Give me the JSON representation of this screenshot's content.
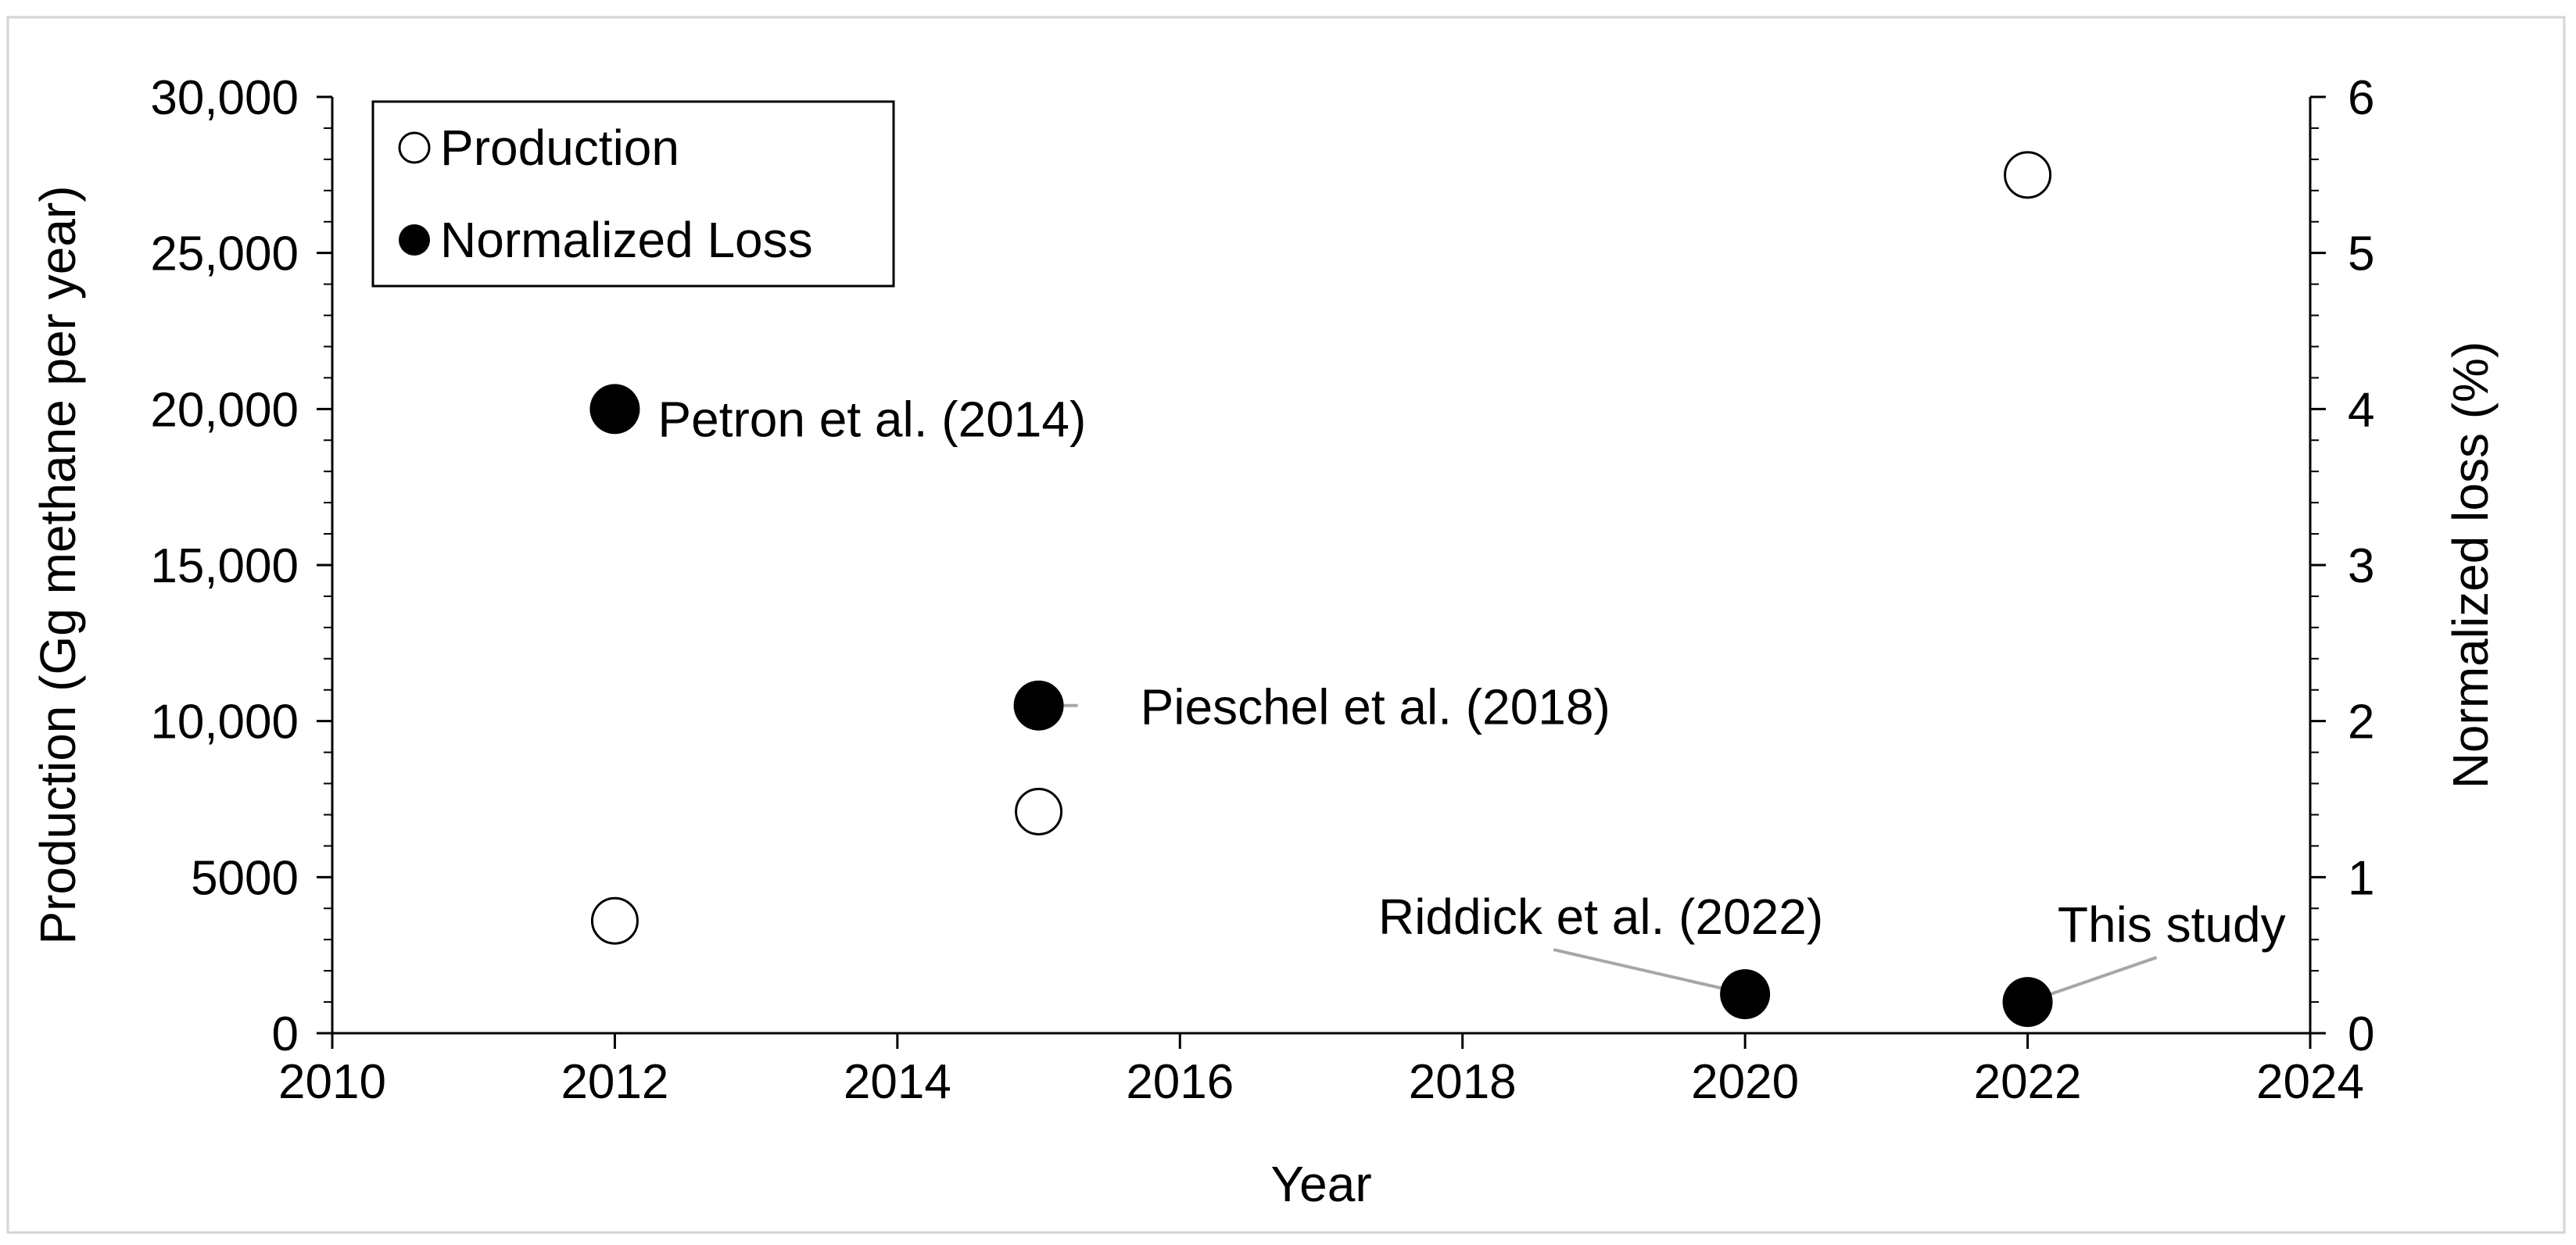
{
  "chart_data": {
    "type": "scatter",
    "xlabel": "Year",
    "ylabel": "Production (Gg methane per year)",
    "y2label": "Normalized loss (%)",
    "xlim": [
      2010,
      2024
    ],
    "ylim": [
      0,
      30000
    ],
    "y2lim": [
      0,
      6
    ],
    "xticks": [
      2010,
      2012,
      2014,
      2016,
      2018,
      2020,
      2022,
      2024
    ],
    "xtick_labels": [
      "2010",
      "2012",
      "2014",
      "2016",
      "2018",
      "2020",
      "2022",
      "2024"
    ],
    "yticks": [
      0,
      5000,
      10000,
      15000,
      20000,
      25000,
      30000
    ],
    "ytick_labels": [
      "0",
      "5000",
      "10,000",
      "15,000",
      "20,000",
      "25,000",
      "30,000"
    ],
    "y2ticks": [
      0,
      1,
      2,
      3,
      4,
      5,
      6
    ],
    "y2tick_labels": [
      "0",
      "1",
      "2",
      "3",
      "4",
      "5",
      "6"
    ],
    "grid": false,
    "legend_position": "top-left",
    "series": [
      {
        "name": "Production",
        "axis": "left",
        "marker": "open-circle",
        "points": [
          {
            "x": 2012,
            "y": 3600
          },
          {
            "x": 2015,
            "y": 7100
          },
          {
            "x": 2022,
            "y": 27500
          }
        ]
      },
      {
        "name": "Normalized Loss",
        "axis": "right",
        "marker": "filled-circle",
        "points": [
          {
            "x": 2012,
            "y": 4.0
          },
          {
            "x": 2015,
            "y": 2.1
          },
          {
            "x": 2020,
            "y": 0.25
          },
          {
            "x": 2022,
            "y": 0.2
          }
        ]
      }
    ],
    "annotations": [
      {
        "text": "Petron et al. (2014)",
        "x": 2012,
        "y": 4.0,
        "leader": false
      },
      {
        "text": "Pieschel et al. (2018)",
        "x": 2015,
        "y": 2.1,
        "leader": true
      },
      {
        "text": "Riddick et al. (2022)",
        "x": 2020,
        "y": 0.25,
        "leader": true
      },
      {
        "text": "This study",
        "x": 2022,
        "y": 0.2,
        "leader": true
      }
    ]
  }
}
